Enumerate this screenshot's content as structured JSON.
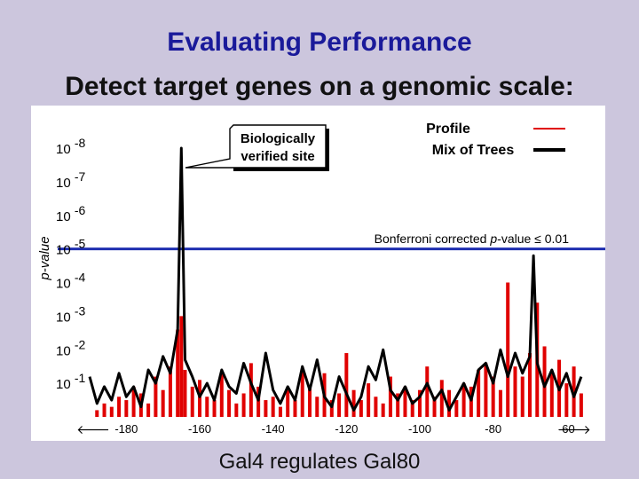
{
  "slide": {
    "title": "Evaluating Performance",
    "subtitle": "Detect target genes on a genomic scale:",
    "caption": "Gal4 regulates Gal80"
  },
  "colors": {
    "background": "#ccc6dd",
    "title": "#1a1a9a",
    "profile": "#e00000",
    "mix_of_trees": "#000000",
    "threshold": "#1f2fb0"
  },
  "chart_data": {
    "type": "bar",
    "ylabel": "p-value",
    "y_ticks": [
      {
        "base": "10",
        "exp": "-8",
        "value": -8
      },
      {
        "base": "10",
        "exp": "-7",
        "value": -7
      },
      {
        "base": "10",
        "exp": "-6",
        "value": -6
      },
      {
        "base": "10",
        "exp": "-5",
        "value": -5
      },
      {
        "base": "10",
        "exp": "-4",
        "value": -4
      },
      {
        "base": "10",
        "exp": "-3",
        "value": -3
      },
      {
        "base": "10",
        "exp": "-2",
        "value": -2
      },
      {
        "base": "10",
        "exp": "-1",
        "value": -1
      }
    ],
    "y_scale": "log10 p-value, inverted (smaller p-values higher)",
    "xlim": [
      -190,
      -55
    ],
    "x_ticks": [
      "-180",
      "-160",
      "-140",
      "-120",
      "-100",
      "-80",
      "-60"
    ],
    "x_tick_values": [
      -180,
      -160,
      -140,
      -120,
      -100,
      -80,
      -60
    ],
    "arrow_left": "🡐",
    "arrow_right": "🡒",
    "legend": {
      "position": "top-right",
      "entries": [
        {
          "name": "Profile",
          "color": "#e00000"
        },
        {
          "name": "Mix of Trees",
          "color": "#000000"
        }
      ]
    },
    "threshold": {
      "value": -5,
      "label_pre": "Bonferroni corrected ",
      "label_italic": "p",
      "label_post": "-value ≤ 0.01"
    },
    "annotation": {
      "line1": "Biologically",
      "line2": "verified site",
      "x": -165,
      "y": -7.8
    },
    "series": [
      {
        "name": "Profile",
        "style": "bars",
        "x": [
          -188,
          -186,
          -184,
          -182,
          -180,
          -178,
          -176,
          -174,
          -172,
          -170,
          -168,
          -166,
          -165,
          -164,
          -162,
          -160,
          -158,
          -156,
          -154,
          -152,
          -150,
          -148,
          -146,
          -144,
          -142,
          -140,
          -138,
          -136,
          -134,
          -132,
          -130,
          -128,
          -126,
          -124,
          -122,
          -120,
          -118,
          -116,
          -114,
          -112,
          -110,
          -108,
          -106,
          -104,
          -102,
          -100,
          -98,
          -96,
          -94,
          -92,
          -90,
          -88,
          -86,
          -84,
          -82,
          -80,
          -78,
          -76,
          -74,
          -72,
          -70,
          -68,
          -66,
          -64,
          -62,
          -60,
          -58,
          -56
        ],
        "values": [
          -0.2,
          -0.4,
          -0.3,
          -0.6,
          -0.5,
          -0.9,
          -0.7,
          -0.4,
          -1.2,
          -0.8,
          -1.5,
          -2.6,
          -3.0,
          -1.4,
          -0.9,
          -1.1,
          -0.6,
          -0.5,
          -1.3,
          -0.8,
          -0.4,
          -0.7,
          -1.6,
          -0.9,
          -0.5,
          -0.6,
          -0.3,
          -0.8,
          -0.5,
          -1.4,
          -0.9,
          -0.6,
          -1.3,
          -0.5,
          -0.7,
          -1.9,
          -0.8,
          -0.5,
          -1.0,
          -0.6,
          -0.4,
          -1.2,
          -0.7,
          -0.9,
          -0.5,
          -0.8,
          -1.5,
          -0.6,
          -1.1,
          -0.8,
          -0.5,
          -1.0,
          -0.9,
          -1.4,
          -1.6,
          -1.2,
          -0.8,
          -4.0,
          -1.5,
          -1.2,
          -1.9,
          -3.4,
          -2.1,
          -1.3,
          -1.7,
          -1.0,
          -1.5,
          -0.7
        ]
      },
      {
        "name": "Mix of Trees",
        "style": "line",
        "x": [
          -190,
          -188,
          -186,
          -184,
          -182,
          -180,
          -178,
          -176,
          -174,
          -172,
          -170,
          -168,
          -166,
          -165,
          -164,
          -162,
          -160,
          -158,
          -156,
          -154,
          -152,
          -150,
          -148,
          -146,
          -144,
          -142,
          -140,
          -138,
          -136,
          -134,
          -132,
          -130,
          -128,
          -126,
          -124,
          -122,
          -120,
          -118,
          -116,
          -114,
          -112,
          -110,
          -108,
          -106,
          -104,
          -102,
          -100,
          -98,
          -96,
          -94,
          -92,
          -90,
          -88,
          -86,
          -84,
          -82,
          -80,
          -78,
          -76,
          -74,
          -72,
          -70,
          -69,
          -68,
          -66,
          -64,
          -62,
          -60,
          -58,
          -56
        ],
        "values": [
          -1.2,
          -0.4,
          -0.9,
          -0.5,
          -1.3,
          -0.6,
          -0.9,
          -0.3,
          -1.4,
          -1.0,
          -1.8,
          -1.3,
          -2.6,
          -8.0,
          -1.7,
          -1.2,
          -0.6,
          -1.0,
          -0.5,
          -1.4,
          -0.9,
          -0.7,
          -1.6,
          -1.0,
          -0.5,
          -1.9,
          -0.8,
          -0.4,
          -0.9,
          -0.5,
          -1.5,
          -0.8,
          -1.7,
          -0.6,
          -0.3,
          -1.2,
          -0.7,
          -0.2,
          -0.6,
          -1.5,
          -1.1,
          -2.0,
          -0.8,
          -0.5,
          -0.9,
          -0.4,
          -0.6,
          -1.0,
          -0.5,
          -0.8,
          -0.2,
          -0.6,
          -1.0,
          -0.5,
          -1.4,
          -1.6,
          -1.0,
          -2.0,
          -1.2,
          -1.9,
          -1.3,
          -1.8,
          -4.8,
          -1.6,
          -0.9,
          -1.4,
          -0.8,
          -1.3,
          -0.6,
          -1.2
        ]
      }
    ]
  }
}
